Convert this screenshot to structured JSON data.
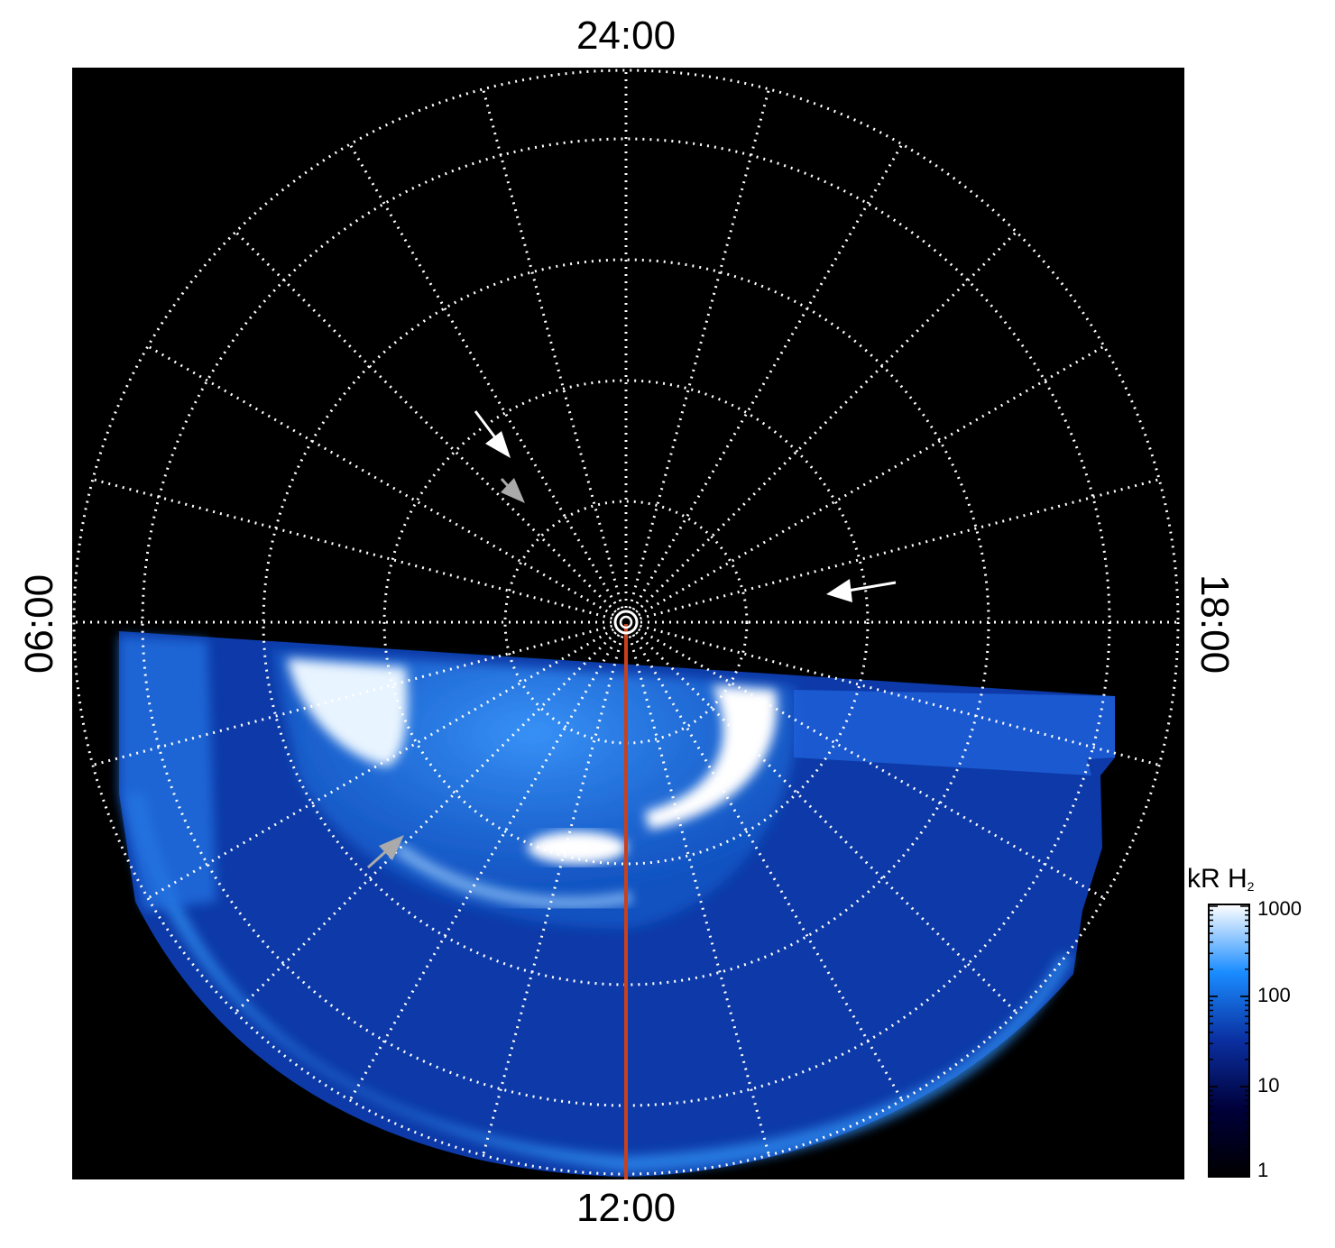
{
  "local_time_labels": {
    "top": "24:00",
    "bottom": "12:00",
    "left": "06:00",
    "right": "18:00"
  },
  "colorbar": {
    "title_main": "kR H",
    "title_sub": "2",
    "ticks": [
      "1000",
      "100",
      "10",
      "1"
    ],
    "scale": "log",
    "colors": [
      "#000000",
      "#00003a",
      "#0a2fa0",
      "#1a8cff",
      "#ffffff"
    ]
  },
  "colors": {
    "background": "#000000",
    "grid": "#ffffff",
    "meridian_line": "#c8401c",
    "arrow_white": "#ffffff",
    "arrow_gray": "#aaaaaa"
  }
}
